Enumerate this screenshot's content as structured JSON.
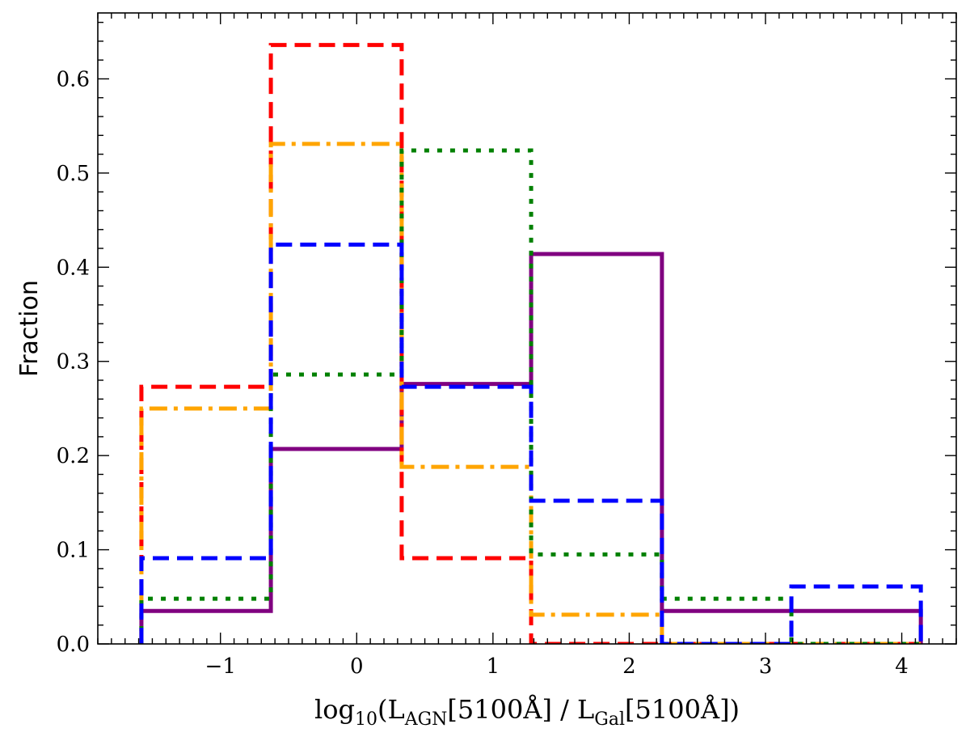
{
  "chart_data": {
    "type": "histogram-step",
    "xlim": [
      -1.9,
      4.4
    ],
    "ylim": [
      0.0,
      0.67
    ],
    "x_ticks": [
      -1,
      0,
      1,
      2,
      3,
      4
    ],
    "x_tick_labels": [
      "−1",
      "0",
      "1",
      "2",
      "3",
      "4"
    ],
    "y_ticks": [
      0.0,
      0.1,
      0.2,
      0.3,
      0.4,
      0.5,
      0.6
    ],
    "y_tick_labels": [
      "0.0",
      "0.1",
      "0.2",
      "0.3",
      "0.4",
      "0.5",
      "0.6"
    ],
    "ylabel": "Fraction",
    "xlabel": {
      "prefix": "log",
      "prefix_sub": "10",
      "part1": "(L",
      "part1_sub": "AGN",
      "part2": "[5100Å] / L",
      "part2_sub": "Gal",
      "part3": "[5100Å])"
    },
    "bin_edges": [
      -1.58,
      -0.63,
      0.33,
      1.28,
      2.24,
      3.19,
      4.14
    ],
    "series": [
      {
        "color": "#800080",
        "style": "solid",
        "values": [
          0.035,
          0.207,
          0.276,
          0.414,
          0.035,
          0.035
        ]
      },
      {
        "color": "#ff0000",
        "style": "dashed",
        "values": [
          0.273,
          0.636,
          0.091,
          0.0,
          0.0,
          0.0
        ]
      },
      {
        "color": "#ffa500",
        "style": "dashdot",
        "values": [
          0.25,
          0.531,
          0.188,
          0.031,
          0.0,
          0.0
        ]
      },
      {
        "color": "#008000",
        "style": "dotted",
        "values": [
          0.048,
          0.286,
          0.524,
          0.095,
          0.048,
          0.0
        ]
      },
      {
        "color": "#0000ff",
        "style": "dashed",
        "values": [
          0.091,
          0.424,
          0.273,
          0.152,
          0.0,
          0.061
        ]
      }
    ]
  }
}
